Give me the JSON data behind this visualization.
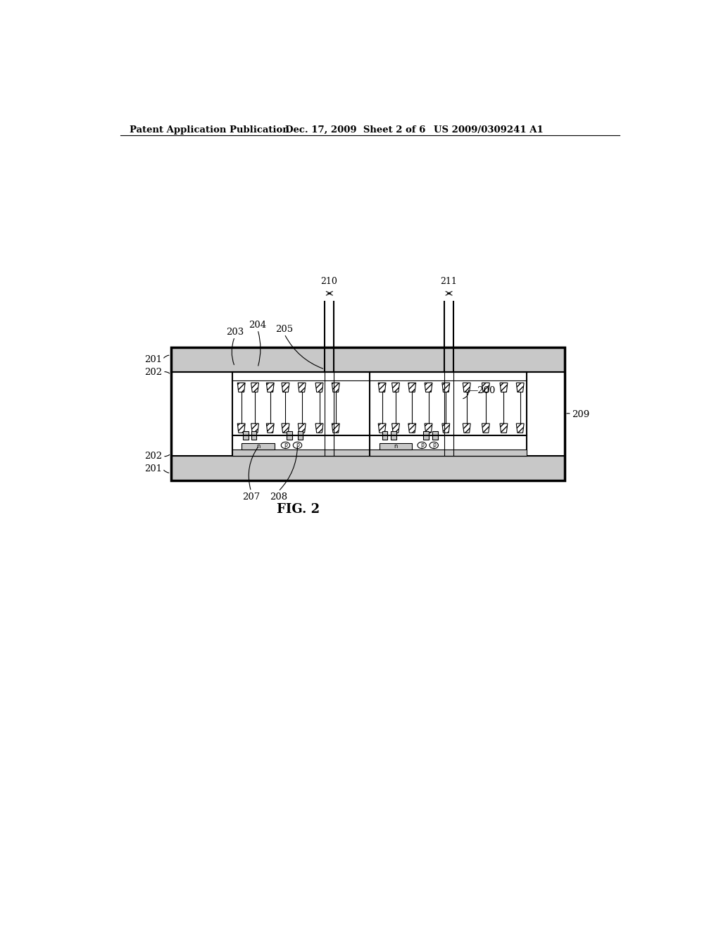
{
  "bg_color": "#ffffff",
  "lc": "#000000",
  "header_left": "Patent Application Publication",
  "header_mid": "Dec. 17, 2009  Sheet 2 of 6",
  "header_right": "US 2009/0309241 A1",
  "fig_label": "FIG. 2",
  "gray_light": "#c8c8c8",
  "gray_fill": "#e0e0e0",
  "white": "#ffffff"
}
